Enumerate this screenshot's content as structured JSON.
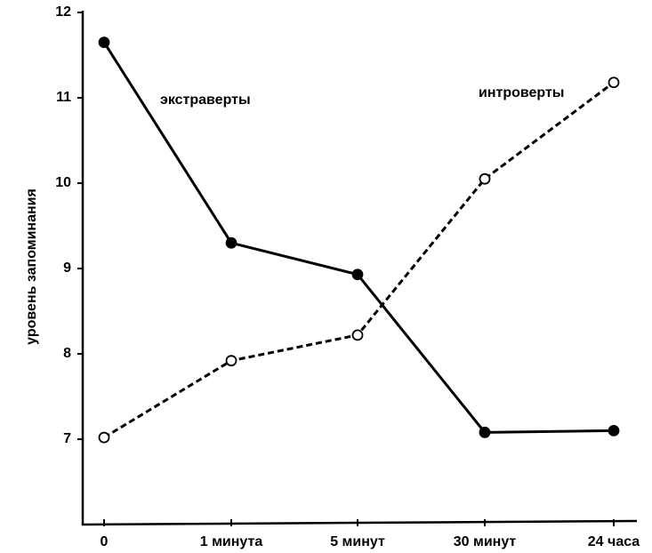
{
  "chart_data": {
    "type": "line",
    "ylabel": "уровень запоминания",
    "categories": [
      "0",
      "1 минута",
      "5 минут",
      "30 минут",
      "24 часа"
    ],
    "series": [
      {
        "name": "экстраверты",
        "color": "#000000",
        "line_style": "solid",
        "marker": "filled",
        "values": [
          11.65,
          9.3,
          8.93,
          7.08,
          7.1
        ]
      },
      {
        "name": "интроверты",
        "color": "#000000",
        "line_style": "dashed",
        "marker": "open",
        "values": [
          7.02,
          7.92,
          8.22,
          10.05,
          11.18
        ]
      }
    ],
    "ylim": [
      6,
      12
    ],
    "yticks": [
      7,
      8,
      9,
      10,
      11,
      12
    ],
    "grid": false
  }
}
